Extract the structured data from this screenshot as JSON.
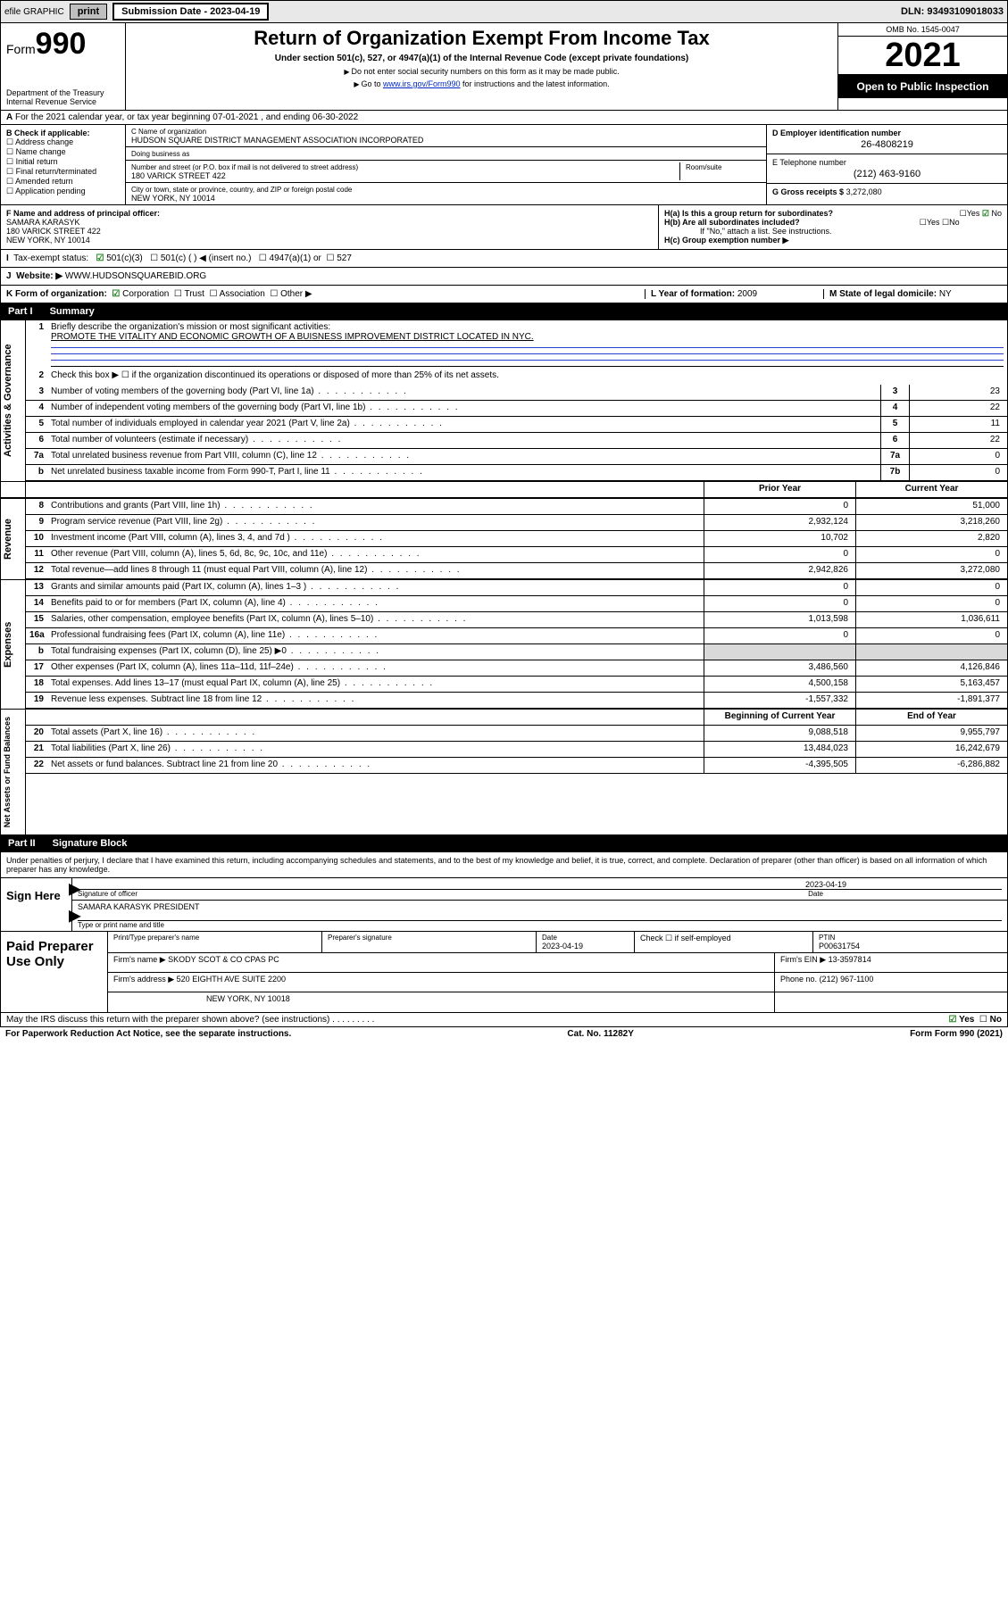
{
  "topbar": {
    "efile": "efile GRAPHIC",
    "print": "print",
    "subdate_label": "Submission Date - 2023-04-19",
    "dln": "DLN: 93493109018033"
  },
  "header": {
    "form_label": "Form",
    "form_num": "990",
    "dept": "Department of the Treasury",
    "irs": "Internal Revenue Service",
    "title": "Return of Organization Exempt From Income Tax",
    "subtitle": "Under section 501(c), 527, or 4947(a)(1) of the Internal Revenue Code (except private foundations)",
    "note1": "Do not enter social security numbers on this form as it may be made public.",
    "note2": "Go to www.irs.gov/Form990 for instructions and the latest information.",
    "note2_link": "www.irs.gov/Form990",
    "omb": "OMB No. 1545-0047",
    "year": "2021",
    "inspect": "Open to Public Inspection"
  },
  "rowA": {
    "text": "For the 2021 calendar year, or tax year beginning 07-01-2021   , and ending 06-30-2022",
    "prefix": "A"
  },
  "colB": {
    "title": "B Check if applicable:",
    "items": [
      "Address change",
      "Name change",
      "Initial return",
      "Final return/terminated",
      "Amended return",
      "Application pending"
    ]
  },
  "colC": {
    "name_lab": "C Name of organization",
    "name_val": "HUDSON SQUARE DISTRICT MANAGEMENT ASSOCIATION INCORPORATED",
    "dba_lab": "Doing business as",
    "addr_lab": "Number and street (or P.O. box if mail is not delivered to street address)",
    "room_lab": "Room/suite",
    "addr_val": "180 VARICK STREET 422",
    "city_lab": "City or town, state or province, country, and ZIP or foreign postal code",
    "city_val": "NEW YORK, NY  10014"
  },
  "colD": {
    "ein_lab": "D Employer identification number",
    "ein_val": "26-4808219",
    "tel_lab": "E Telephone number",
    "tel_val": "(212) 463-9160",
    "gross_lab": "G Gross receipts $",
    "gross_val": "3,272,080"
  },
  "colF": {
    "lab": "F Name and address of principal officer:",
    "name": "SAMARA KARASYK",
    "addr1": "180 VARICK STREET 422",
    "addr2": "NEW YORK, NY  10014"
  },
  "colH": {
    "ha": "H(a)  Is this a group return for subordinates?",
    "ha_yes": "Yes",
    "ha_no": "No",
    "hb": "H(b)  Are all subordinates included?",
    "hb_yes": "Yes",
    "hb_no": "No",
    "hb_note": "If \"No,\" attach a list. See instructions.",
    "hc": "H(c)  Group exemption number ▶"
  },
  "rowI": {
    "lab": "Tax-exempt status:",
    "opts": [
      "501(c)(3)",
      "501(c) (  ) ◀ (insert no.)",
      "4947(a)(1) or",
      "527"
    ],
    "prefix": "I"
  },
  "rowJ": {
    "lab": "Website: ▶",
    "val": "WWW.HUDSONSQUAREBID.ORG",
    "prefix": "J"
  },
  "rowK": {
    "k": "K Form of organization:",
    "opts": [
      "Corporation",
      "Trust",
      "Association",
      "Other ▶"
    ],
    "l_lab": "L Year of formation:",
    "l_val": "2009",
    "m_lab": "M State of legal domicile:",
    "m_val": "NY"
  },
  "part1": {
    "hdr": "Part I",
    "title": "Summary"
  },
  "gov": {
    "label": "Activities & Governance",
    "l1_lab": "Briefly describe the organization's mission or most significant activities:",
    "l1_val": "PROMOTE THE VITALITY AND ECONOMIC GROWTH OF A BUISNESS IMPROVEMENT DISTRICT LOCATED IN NYC.",
    "l2": "Check this box ▶ ☐  if the organization discontinued its operations or disposed of more than 25% of its net assets.",
    "rows": [
      {
        "n": "3",
        "t": "Number of voting members of the governing body (Part VI, line 1a)",
        "box": "3",
        "v": "23"
      },
      {
        "n": "4",
        "t": "Number of independent voting members of the governing body (Part VI, line 1b)",
        "box": "4",
        "v": "22"
      },
      {
        "n": "5",
        "t": "Total number of individuals employed in calendar year 2021 (Part V, line 2a)",
        "box": "5",
        "v": "11"
      },
      {
        "n": "6",
        "t": "Total number of volunteers (estimate if necessary)",
        "box": "6",
        "v": "22"
      },
      {
        "n": "7a",
        "t": "Total unrelated business revenue from Part VIII, column (C), line 12",
        "box": "7a",
        "v": "0"
      },
      {
        "n": "b",
        "t": "Net unrelated business taxable income from Form 990-T, Part I, line 11",
        "box": "7b",
        "v": "0"
      }
    ]
  },
  "colhdr": {
    "prior": "Prior Year",
    "current": "Current Year"
  },
  "rev": {
    "label": "Revenue",
    "rows": [
      {
        "n": "8",
        "t": "Contributions and grants (Part VIII, line 1h)",
        "p": "0",
        "c": "51,000"
      },
      {
        "n": "9",
        "t": "Program service revenue (Part VIII, line 2g)",
        "p": "2,932,124",
        "c": "3,218,260"
      },
      {
        "n": "10",
        "t": "Investment income (Part VIII, column (A), lines 3, 4, and 7d )",
        "p": "10,702",
        "c": "2,820"
      },
      {
        "n": "11",
        "t": "Other revenue (Part VIII, column (A), lines 5, 6d, 8c, 9c, 10c, and 11e)",
        "p": "0",
        "c": "0"
      },
      {
        "n": "12",
        "t": "Total revenue—add lines 8 through 11 (must equal Part VIII, column (A), line 12)",
        "p": "2,942,826",
        "c": "3,272,080"
      }
    ]
  },
  "exp": {
    "label": "Expenses",
    "rows": [
      {
        "n": "13",
        "t": "Grants and similar amounts paid (Part IX, column (A), lines 1–3 )",
        "p": "0",
        "c": "0"
      },
      {
        "n": "14",
        "t": "Benefits paid to or for members (Part IX, column (A), line 4)",
        "p": "0",
        "c": "0"
      },
      {
        "n": "15",
        "t": "Salaries, other compensation, employee benefits (Part IX, column (A), lines 5–10)",
        "p": "1,013,598",
        "c": "1,036,611"
      },
      {
        "n": "16a",
        "t": "Professional fundraising fees (Part IX, column (A), line 11e)",
        "p": "0",
        "c": "0"
      },
      {
        "n": "b",
        "t": "Total fundraising expenses (Part IX, column (D), line 25) ▶0",
        "p": "",
        "c": "",
        "gray": true
      },
      {
        "n": "17",
        "t": "Other expenses (Part IX, column (A), lines 11a–11d, 11f–24e)",
        "p": "3,486,560",
        "c": "4,126,846"
      },
      {
        "n": "18",
        "t": "Total expenses. Add lines 13–17 (must equal Part IX, column (A), line 25)",
        "p": "4,500,158",
        "c": "5,163,457"
      },
      {
        "n": "19",
        "t": "Revenue less expenses. Subtract line 18 from line 12",
        "p": "-1,557,332",
        "c": "-1,891,377"
      }
    ]
  },
  "net": {
    "label": "Net Assets or Fund Balances",
    "hdr_p": "Beginning of Current Year",
    "hdr_c": "End of Year",
    "rows": [
      {
        "n": "20",
        "t": "Total assets (Part X, line 16)",
        "p": "9,088,518",
        "c": "9,955,797"
      },
      {
        "n": "21",
        "t": "Total liabilities (Part X, line 26)",
        "p": "13,484,023",
        "c": "16,242,679"
      },
      {
        "n": "22",
        "t": "Net assets or fund balances. Subtract line 21 from line 20",
        "p": "-4,395,505",
        "c": "-6,286,882"
      }
    ]
  },
  "part2": {
    "hdr": "Part II",
    "title": "Signature Block"
  },
  "sig": {
    "decl": "Under penalties of perjury, I declare that I have examined this return, including accompanying schedules and statements, and to the best of my knowledge and belief, it is true, correct, and complete. Declaration of preparer (other than officer) is based on all information of which preparer has any knowledge.",
    "sign_here": "Sign Here",
    "sig_lab": "Signature of officer",
    "date_lab": "Date",
    "date_val": "2023-04-19",
    "name_val": "SAMARA KARASYK  PRESIDENT",
    "name_lab": "Type or print name and title"
  },
  "paid": {
    "lab": "Paid Preparer Use Only",
    "r1": {
      "c1_lab": "Print/Type preparer's name",
      "c1_val": "",
      "c2_lab": "Preparer's signature",
      "c2_val": "",
      "c3_lab": "Date",
      "c3_val": "2023-04-19",
      "c4_lab": "Check ☐ if self-employed",
      "c5_lab": "PTIN",
      "c5_val": "P00631754"
    },
    "r2": {
      "firm_lab": "Firm's name      ▶",
      "firm_val": "SKODY SCOT & CO CPAS PC",
      "ein_lab": "Firm's EIN ▶",
      "ein_val": "13-3597814"
    },
    "r3": {
      "addr_lab": "Firm's address ▶",
      "addr_val": "520 EIGHTH AVE SUITE 2200",
      "phone_lab": "Phone no.",
      "phone_val": "(212) 967-1100"
    },
    "r4": {
      "addr2": "NEW YORK, NY  10018"
    }
  },
  "footer": {
    "discuss": "May the IRS discuss this return with the preparer shown above? (see instructions)",
    "yes": "Yes",
    "no": "No",
    "pra": "For Paperwork Reduction Act Notice, see the separate instructions.",
    "cat": "Cat. No. 11282Y",
    "form": "Form 990 (2021)"
  }
}
